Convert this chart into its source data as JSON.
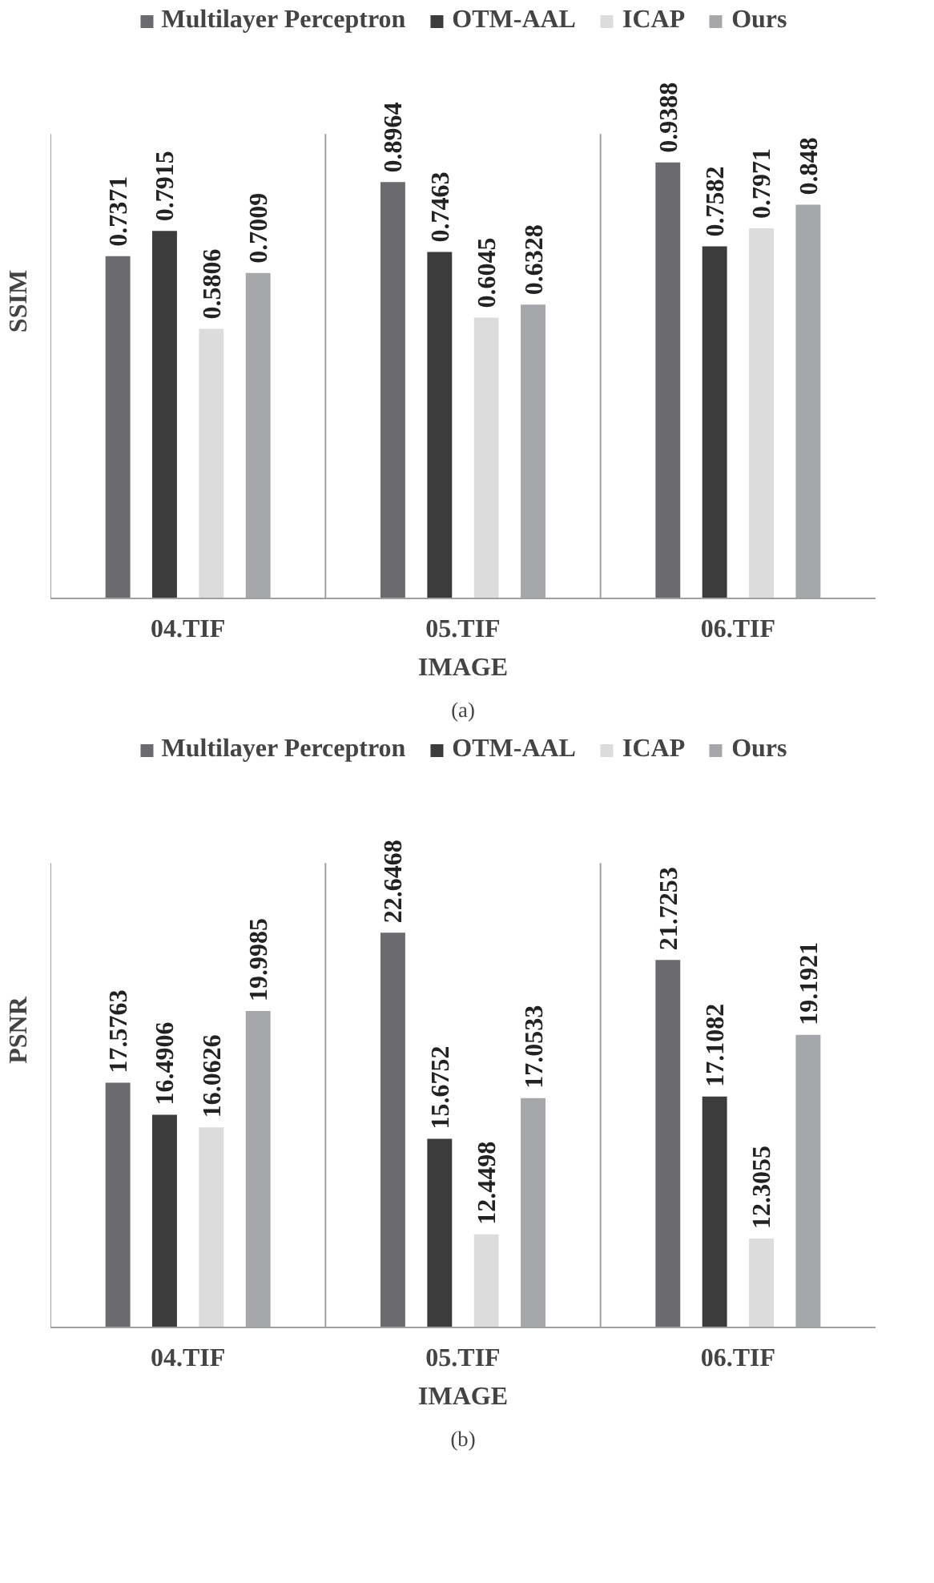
{
  "chart_data": [
    {
      "type": "bar",
      "ylabel": "SSIM",
      "xlabel": "IMAGE",
      "categories": [
        "04.TIF",
        "05.TIF",
        "06.TIF"
      ],
      "ylim": [
        0,
        1
      ],
      "tick_labels": "x",
      "data_labels": true,
      "legend": "top",
      "grid": false,
      "series": [
        {
          "name": "Multilayer Perceptron",
          "color": "#6b6b6f",
          "values": [
            0.7371,
            0.8964,
            0.9388
          ]
        },
        {
          "name": "OTM-AAL",
          "color": "#3c3c3c",
          "values": [
            0.7915,
            0.7463,
            0.7582
          ]
        },
        {
          "name": "ICAP",
          "color": "#dcdcdd",
          "values": [
            0.5806,
            0.6045,
            0.7971
          ]
        },
        {
          "name": "Ours",
          "color": "#a6a7aa",
          "values": [
            0.7009,
            0.6328,
            0.848
          ]
        }
      ],
      "annotations": [
        "(a)"
      ]
    },
    {
      "type": "bar",
      "ylabel": "PSNR",
      "xlabel": "IMAGE",
      "categories": [
        "04.TIF",
        "05.TIF",
        "06.TIF"
      ],
      "ylim": [
        9.3,
        25
      ],
      "tick_labels": "x",
      "data_labels": true,
      "legend": "top",
      "grid": false,
      "series": [
        {
          "name": "Multilayer Perceptron",
          "color": "#6b6b6f",
          "values": [
            17.5763,
            22.6468,
            21.7253
          ]
        },
        {
          "name": "OTM-AAL",
          "color": "#3c3c3c",
          "values": [
            16.4906,
            15.6752,
            17.1082
          ]
        },
        {
          "name": "ICAP",
          "color": "#dcdcdd",
          "values": [
            16.0626,
            12.4498,
            12.3055
          ]
        },
        {
          "name": "Ours",
          "color": "#a6a7aa",
          "values": [
            19.9985,
            17.0533,
            19.1921
          ]
        }
      ],
      "annotations": [
        "(b)"
      ]
    }
  ]
}
